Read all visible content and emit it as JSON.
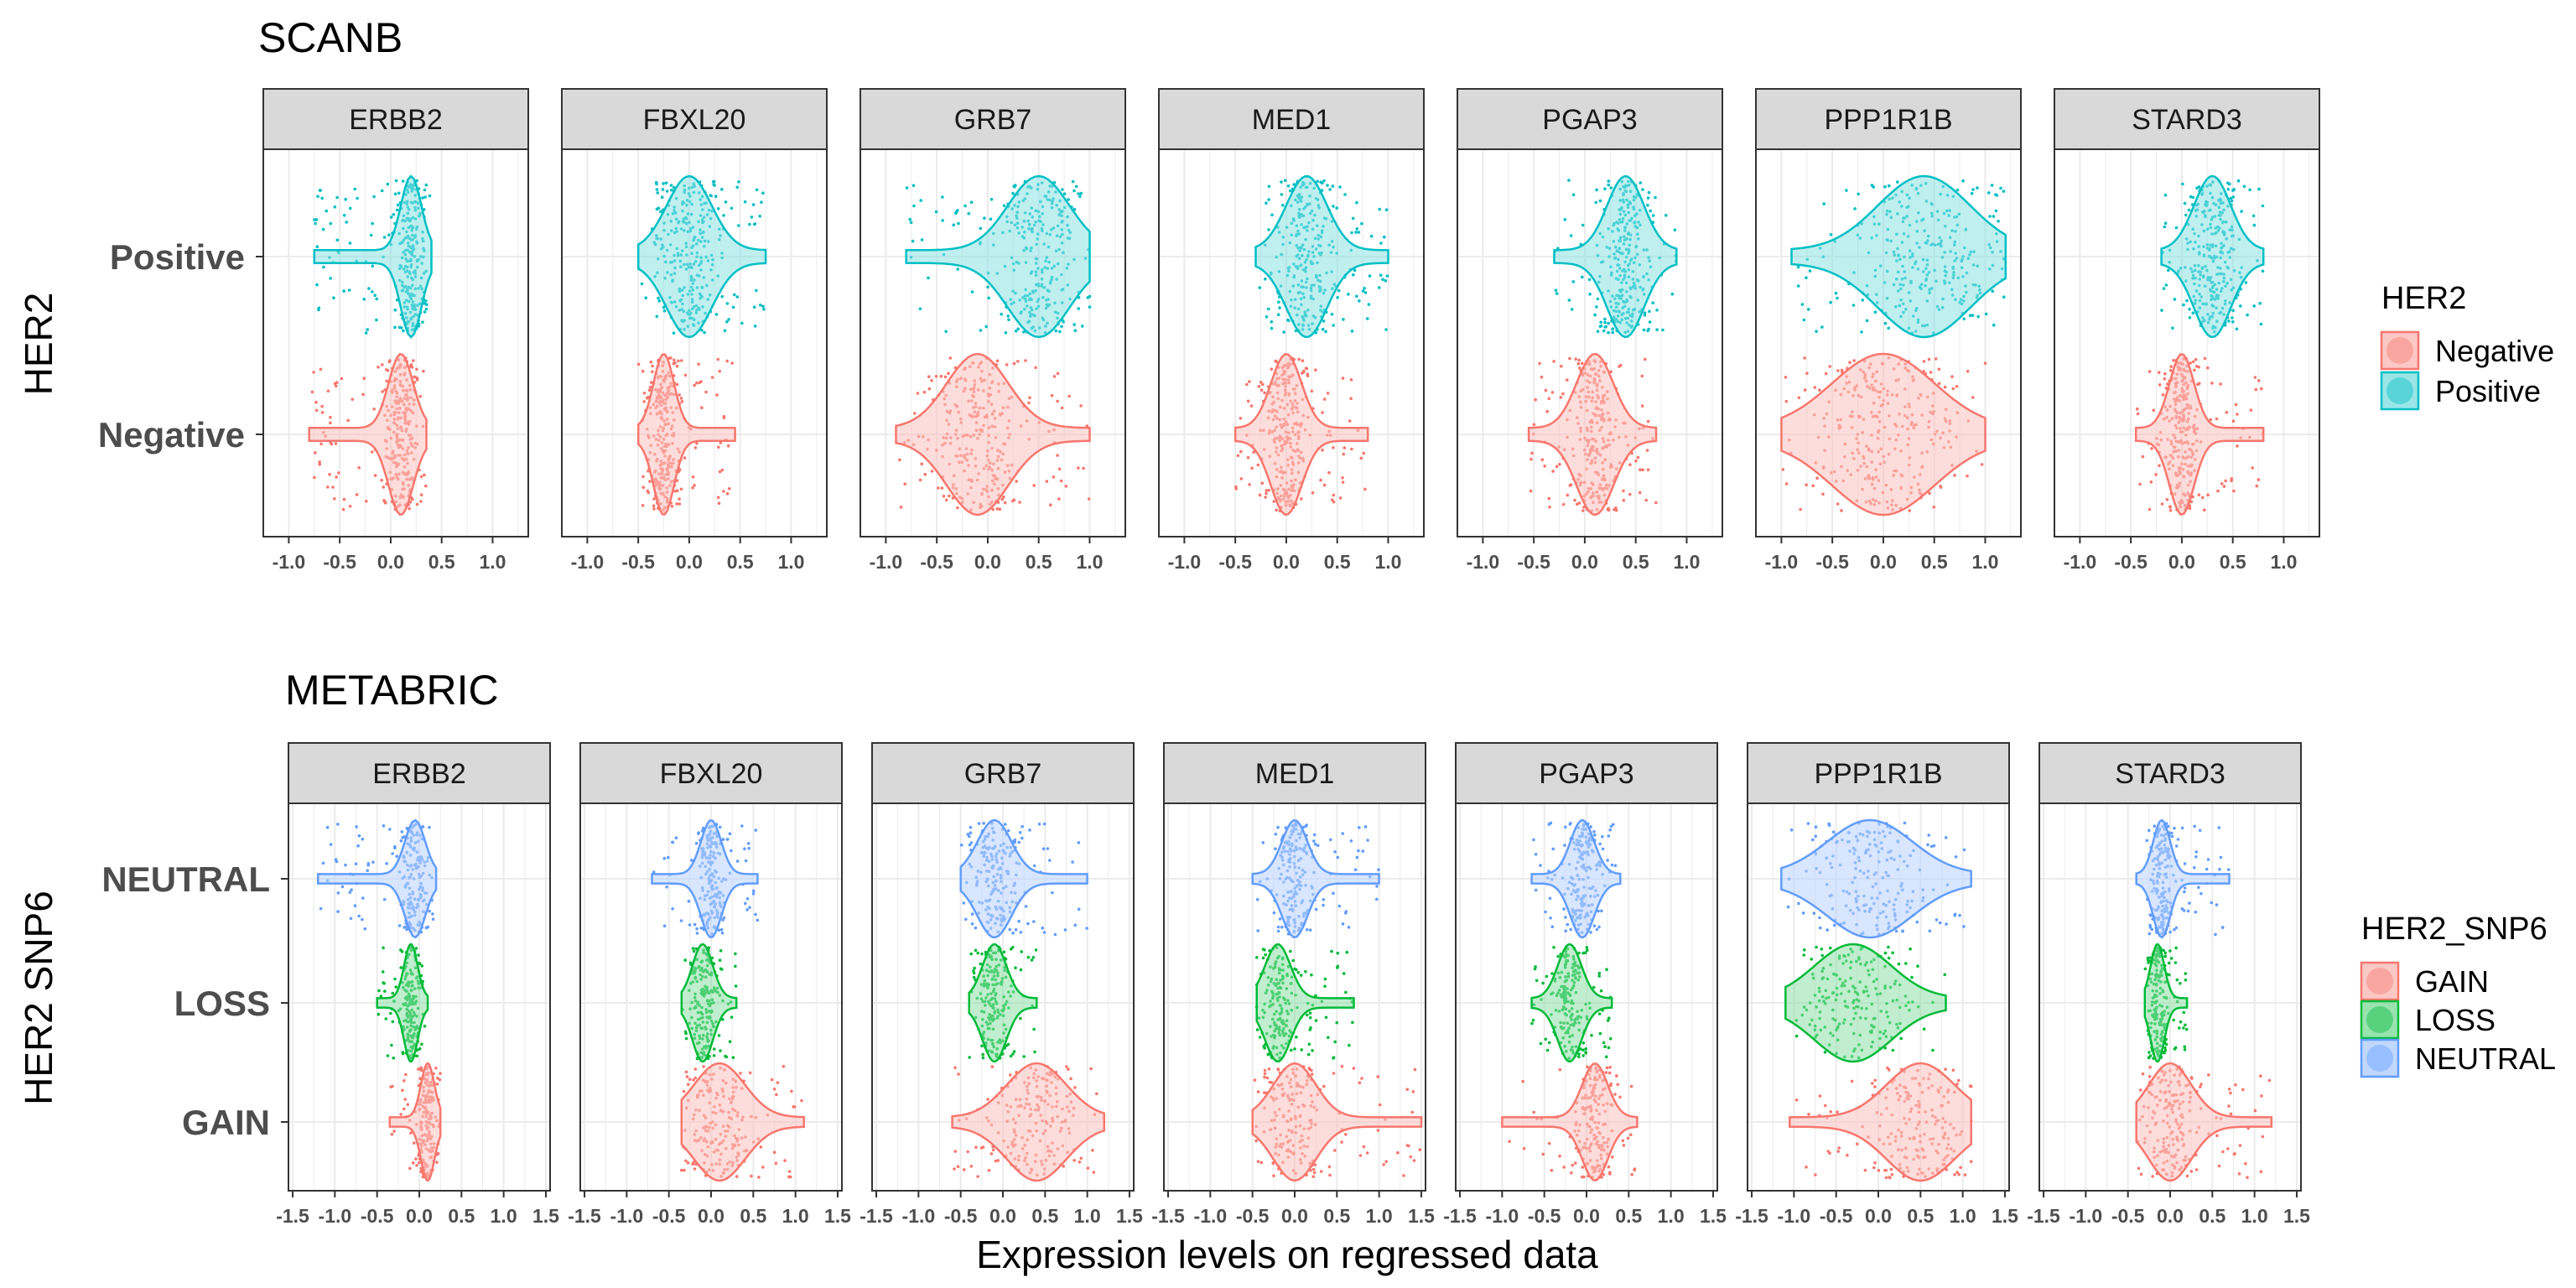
{
  "chart_data": [
    {
      "type": "violin",
      "title": "SCANB",
      "ylabel": "HER2",
      "xlabel": "",
      "xlim": [
        -1.25,
        1.35
      ],
      "x_ticks": [
        -1.0,
        -0.5,
        0.0,
        0.5,
        1.0
      ],
      "x_tick_labels": [
        "-1.0",
        "-0.5",
        "0.0",
        "0.5",
        "1.0"
      ],
      "groups": [
        "Negative",
        "Positive"
      ],
      "group_colors": {
        "Negative": "#F8766D",
        "Positive": "#00BFC4"
      },
      "legend": {
        "title": "HER2",
        "entries": [
          "Negative",
          "Positive"
        ],
        "placement": "right"
      },
      "facets": [
        {
          "name": "ERBB2",
          "groups": [
            {
              "group": "Negative",
              "center": 0.1,
              "min": -0.8,
              "max": 0.35,
              "spread": 0.12
            },
            {
              "group": "Positive",
              "center": 0.2,
              "min": -0.75,
              "max": 0.4,
              "spread": 0.1
            }
          ]
        },
        {
          "name": "FBXL20",
          "groups": [
            {
              "group": "Negative",
              "center": -0.25,
              "min": -0.5,
              "max": 0.45,
              "spread": 0.1
            },
            {
              "group": "Positive",
              "center": 0.0,
              "min": -0.5,
              "max": 0.75,
              "spread": 0.22
            }
          ]
        },
        {
          "name": "GRB7",
          "groups": [
            {
              "group": "Negative",
              "center": -0.1,
              "min": -0.9,
              "max": 1.0,
              "spread": 0.3
            },
            {
              "group": "Positive",
              "center": 0.5,
              "min": -0.8,
              "max": 1.0,
              "spread": 0.3
            }
          ]
        },
        {
          "name": "MED1",
          "groups": [
            {
              "group": "Negative",
              "center": 0.0,
              "min": -0.5,
              "max": 0.8,
              "spread": 0.15
            },
            {
              "group": "Positive",
              "center": 0.2,
              "min": -0.3,
              "max": 1.0,
              "spread": 0.2
            }
          ]
        },
        {
          "name": "PGAP3",
          "groups": [
            {
              "group": "Negative",
              "center": 0.1,
              "min": -0.55,
              "max": 0.7,
              "spread": 0.18
            },
            {
              "group": "Positive",
              "center": 0.4,
              "min": -0.3,
              "max": 0.9,
              "spread": 0.18
            }
          ]
        },
        {
          "name": "PPP1R1B",
          "groups": [
            {
              "group": "Negative",
              "center": 0.0,
              "min": -1.0,
              "max": 1.0,
              "spread": 0.5
            },
            {
              "group": "Positive",
              "center": 0.4,
              "min": -0.9,
              "max": 1.2,
              "spread": 0.45
            }
          ]
        },
        {
          "name": "STARD3",
          "groups": [
            {
              "group": "Negative",
              "center": 0.0,
              "min": -0.45,
              "max": 0.8,
              "spread": 0.12
            },
            {
              "group": "Positive",
              "center": 0.3,
              "min": -0.2,
              "max": 0.8,
              "spread": 0.18
            }
          ]
        }
      ]
    },
    {
      "type": "violin",
      "title": "METABRIC",
      "ylabel": "HER2 SNP6",
      "xlabel": "Expression levels on regressed data",
      "xlim": [
        -1.55,
        1.55
      ],
      "x_ticks": [
        -1.5,
        -1.0,
        -0.5,
        0.0,
        0.5,
        1.0,
        1.5
      ],
      "x_tick_labels": [
        "-1.5",
        "-1.0",
        "-0.5",
        "0.0",
        "0.5",
        "1.0",
        "1.5"
      ],
      "groups": [
        "GAIN",
        "LOSS",
        "NEUTRAL"
      ],
      "group_colors": {
        "GAIN": "#F8766D",
        "LOSS": "#00BA38",
        "NEUTRAL": "#619CFF"
      },
      "legend": {
        "title": "HER2_SNP6",
        "entries": [
          "GAIN",
          "LOSS",
          "NEUTRAL"
        ],
        "placement": "right"
      },
      "facets": [
        {
          "name": "ERBB2",
          "groups": [
            {
              "group": "GAIN",
              "center": 0.1,
              "min": -0.35,
              "max": 0.25,
              "spread": 0.08
            },
            {
              "group": "LOSS",
              "center": -0.1,
              "min": -0.5,
              "max": 0.1,
              "spread": 0.08
            },
            {
              "group": "NEUTRAL",
              "center": -0.05,
              "min": -1.2,
              "max": 0.2,
              "spread": 0.12
            }
          ]
        },
        {
          "name": "FBXL20",
          "groups": [
            {
              "group": "GAIN",
              "center": 0.1,
              "min": -0.35,
              "max": 1.1,
              "spread": 0.3
            },
            {
              "group": "LOSS",
              "center": -0.1,
              "min": -0.35,
              "max": 0.3,
              "spread": 0.12
            },
            {
              "group": "NEUTRAL",
              "center": 0.0,
              "min": -0.7,
              "max": 0.55,
              "spread": 0.12
            }
          ]
        },
        {
          "name": "GRB7",
          "groups": [
            {
              "group": "GAIN",
              "center": 0.4,
              "min": -0.6,
              "max": 1.2,
              "spread": 0.35
            },
            {
              "group": "LOSS",
              "center": -0.1,
              "min": -0.4,
              "max": 0.4,
              "spread": 0.14
            },
            {
              "group": "NEUTRAL",
              "center": -0.1,
              "min": -0.5,
              "max": 1.0,
              "spread": 0.2
            }
          ]
        },
        {
          "name": "MED1",
          "groups": [
            {
              "group": "GAIN",
              "center": 0.0,
              "min": -0.5,
              "max": 1.5,
              "spread": 0.25
            },
            {
              "group": "LOSS",
              "center": -0.2,
              "min": -0.45,
              "max": 0.7,
              "spread": 0.15
            },
            {
              "group": "NEUTRAL",
              "center": 0.0,
              "min": -0.5,
              "max": 1.0,
              "spread": 0.15
            }
          ]
        },
        {
          "name": "PGAP3",
          "groups": [
            {
              "group": "GAIN",
              "center": 0.1,
              "min": -1.0,
              "max": 0.6,
              "spread": 0.15
            },
            {
              "group": "LOSS",
              "center": -0.2,
              "min": -0.65,
              "max": 0.3,
              "spread": 0.14
            },
            {
              "group": "NEUTRAL",
              "center": -0.05,
              "min": -0.65,
              "max": 0.4,
              "spread": 0.14
            }
          ]
        },
        {
          "name": "PPP1R1B",
          "groups": [
            {
              "group": "GAIN",
              "center": 0.5,
              "min": -1.05,
              "max": 1.1,
              "spread": 0.4
            },
            {
              "group": "LOSS",
              "center": -0.3,
              "min": -1.1,
              "max": 0.8,
              "spread": 0.45
            },
            {
              "group": "NEUTRAL",
              "center": -0.1,
              "min": -1.15,
              "max": 1.1,
              "spread": 0.5
            }
          ]
        },
        {
          "name": "STARD3",
          "groups": [
            {
              "group": "GAIN",
              "center": 0.0,
              "min": -0.4,
              "max": 1.2,
              "spread": 0.25
            },
            {
              "group": "LOSS",
              "center": -0.15,
              "min": -0.3,
              "max": 0.2,
              "spread": 0.08
            },
            {
              "group": "NEUTRAL",
              "center": -0.1,
              "min": -0.4,
              "max": 0.7,
              "spread": 0.1
            }
          ]
        }
      ]
    }
  ]
}
